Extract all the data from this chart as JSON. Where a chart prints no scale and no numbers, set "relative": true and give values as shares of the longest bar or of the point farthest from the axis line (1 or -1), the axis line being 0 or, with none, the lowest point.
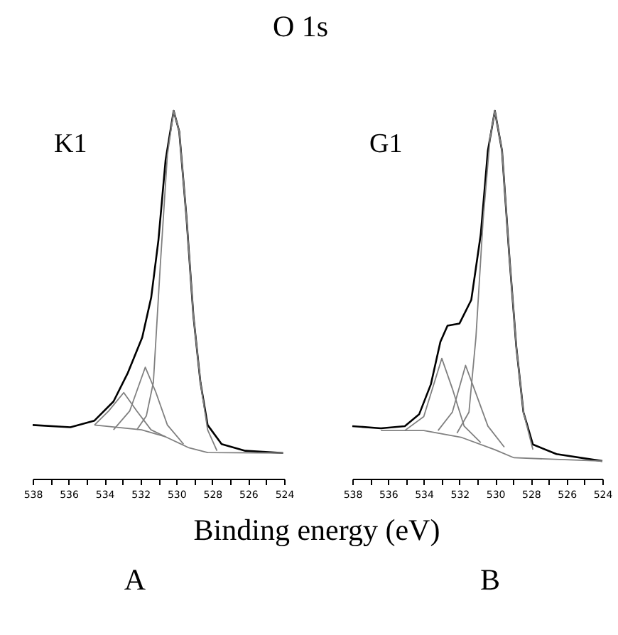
{
  "chart_data": [
    {
      "type": "line",
      "title": "O 1s",
      "xlabel": "Binding energy (eV)",
      "annotations": [
        "K1",
        "A"
      ],
      "relative": true,
      "tick_labels": "x",
      "xlim": [
        538,
        524
      ],
      "xticks": [
        538,
        {
          "value": 537,
          "label": null
        },
        536,
        {
          "value": 535,
          "label": null
        },
        534,
        {
          "value": 533,
          "label": null
        },
        532,
        {
          "value": 531,
          "label": null
        },
        530,
        {
          "value": 529,
          "label": null
        },
        528,
        {
          "value": 527,
          "label": null
        },
        526,
        {
          "value": 525,
          "label": null
        },
        524
      ],
      "series": [
        {
          "color": "#000000",
          "x": [
            538,
            535.9,
            534.56,
            533.5,
            532.7,
            531.9,
            531.4,
            531.0,
            530.6,
            530.15,
            529.84,
            529.44,
            529.05,
            528.66,
            528.26,
            527.48,
            526.16,
            524.06
          ],
          "values": [
            0.146,
            0.14,
            0.158,
            0.21,
            0.288,
            0.384,
            0.493,
            0.648,
            0.866,
            1.0,
            0.944,
            0.712,
            0.442,
            0.262,
            0.146,
            0.094,
            0.076,
            0.07
          ]
        },
        {
          "color": "#808080",
          "x": [
            534.56,
            531.94,
            530.6,
            529.3,
            528.26,
            524.06
          ],
          "values": [
            0.146,
            0.133,
            0.114,
            0.084,
            0.071,
            0.07
          ]
        },
        {
          "color": "#808080",
          "x": [
            534.56,
            533.77,
            532.93,
            532.2,
            531.41,
            530.6
          ],
          "values": [
            0.146,
            0.184,
            0.234,
            0.184,
            0.133,
            0.114
          ]
        },
        {
          "color": "#808080",
          "x": [
            533.5,
            532.6,
            531.73,
            531.15,
            530.5,
            529.6
          ],
          "values": [
            0.133,
            0.184,
            0.303,
            0.236,
            0.146,
            0.094
          ]
        },
        {
          "color": "#808080",
          "x": [
            532.2,
            531.67,
            531.28,
            530.89,
            530.5,
            530.15,
            529.84,
            529.44,
            529.05,
            528.66,
            528.26,
            527.74
          ],
          "values": [
            0.133,
            0.171,
            0.262,
            0.584,
            0.88,
            1.0,
            0.944,
            0.712,
            0.442,
            0.262,
            0.133,
            0.076
          ]
        }
      ]
    },
    {
      "type": "line",
      "annotations": [
        "G1",
        "B"
      ],
      "relative": true,
      "tick_labels": "x",
      "xlim": [
        538,
        524
      ],
      "xticks": [
        538,
        {
          "value": 537,
          "label": null
        },
        536,
        {
          "value": 535,
          "label": null
        },
        534,
        {
          "value": 533,
          "label": null
        },
        532,
        {
          "value": 531,
          "label": null
        },
        530,
        {
          "value": 529,
          "label": null
        },
        528,
        {
          "value": 527,
          "label": null
        },
        526,
        {
          "value": 525,
          "label": null
        },
        524
      ],
      "series": [
        {
          "color": "#000000",
          "x": [
            538,
            536.4,
            535.06,
            534.26,
            533.6,
            533.07,
            532.67,
            532.0,
            531.34,
            530.81,
            530.41,
            530.02,
            529.62,
            529.22,
            528.82,
            528.42,
            527.89,
            526.57,
            524.0
          ],
          "values": [
            0.143,
            0.137,
            0.143,
            0.175,
            0.257,
            0.372,
            0.416,
            0.422,
            0.486,
            0.664,
            0.892,
            1.0,
            0.892,
            0.612,
            0.359,
            0.181,
            0.093,
            0.067,
            0.048
          ]
        },
        {
          "color": "#808080",
          "x": [
            536.4,
            534.0,
            531.87,
            530.02,
            528.95,
            524.0
          ],
          "values": [
            0.131,
            0.131,
            0.112,
            0.079,
            0.057,
            0.048
          ]
        },
        {
          "color": "#808080",
          "x": [
            535.06,
            534.0,
            532.99,
            532.4,
            531.74,
            530.81
          ],
          "values": [
            0.131,
            0.169,
            0.327,
            0.245,
            0.143,
            0.098
          ]
        },
        {
          "color": "#808080",
          "x": [
            533.2,
            532.4,
            531.66,
            531.08,
            530.41,
            529.49
          ],
          "values": [
            0.131,
            0.181,
            0.308,
            0.232,
            0.143,
            0.086
          ]
        },
        {
          "color": "#808080",
          "x": [
            532.14,
            531.47,
            531.08,
            530.68,
            530.28,
            530.02,
            529.62,
            529.22,
            528.82,
            528.42,
            527.89
          ],
          "values": [
            0.124,
            0.181,
            0.384,
            0.702,
            0.93,
            1.0,
            0.892,
            0.612,
            0.359,
            0.181,
            0.079
          ]
        }
      ]
    }
  ]
}
